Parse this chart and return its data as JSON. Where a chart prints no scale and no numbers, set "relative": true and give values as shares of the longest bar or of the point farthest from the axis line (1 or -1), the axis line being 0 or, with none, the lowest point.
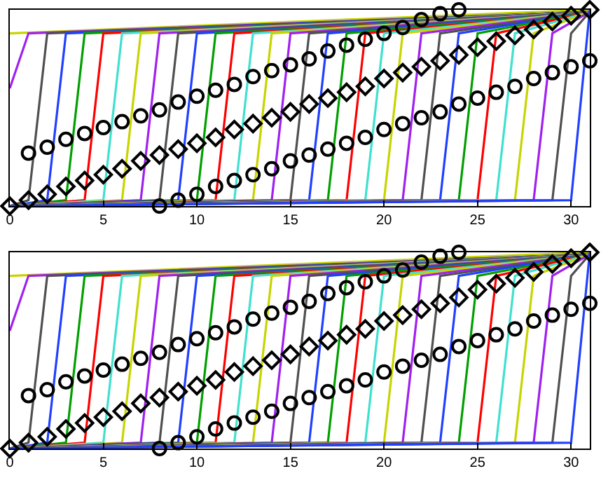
{
  "chart_data": [
    {
      "type": "line",
      "relative": true,
      "xlim": [
        0,
        31
      ],
      "xticks": [
        0,
        5,
        10,
        15,
        20,
        25,
        30
      ],
      "tick_labels": "x",
      "series": [
        {
          "color": "#c8d400",
          "x": [
            0,
            31
          ],
          "values": [
            0.88,
            1.0
          ]
        },
        {
          "color": "#a020f0",
          "x": [
            0,
            1,
            31
          ],
          "values": [
            0.6,
            0.88,
            0.99
          ]
        },
        {
          "color": "#505050",
          "x": [
            0,
            1,
            2,
            31
          ],
          "values": [
            0,
            0.03,
            0.88,
            0.99
          ]
        },
        {
          "color": "#2040ff",
          "x": [
            0,
            2,
            3,
            31
          ],
          "values": [
            0,
            0.03,
            0.88,
            0.99
          ]
        },
        {
          "color": "#00a000",
          "x": [
            0,
            3,
            4,
            31
          ],
          "values": [
            0,
            0.03,
            0.88,
            0.99
          ]
        },
        {
          "color": "#ff0000",
          "x": [
            0,
            4,
            5,
            31
          ],
          "values": [
            0,
            0.03,
            0.88,
            0.99
          ]
        },
        {
          "color": "#40e0d0",
          "x": [
            0,
            5,
            6,
            31
          ],
          "values": [
            0,
            0.03,
            0.88,
            0.99
          ]
        },
        {
          "color": "#c8d400",
          "x": [
            0,
            6,
            7,
            31
          ],
          "values": [
            0,
            0.03,
            0.88,
            0.99
          ]
        },
        {
          "color": "#a020f0",
          "x": [
            0,
            7,
            8,
            31
          ],
          "values": [
            0,
            0.03,
            0.88,
            0.99
          ]
        },
        {
          "color": "#505050",
          "x": [
            0,
            8,
            9,
            31
          ],
          "values": [
            0,
            0.03,
            0.88,
            0.99
          ]
        },
        {
          "color": "#2040ff",
          "x": [
            0,
            9,
            10,
            31
          ],
          "values": [
            0,
            0.03,
            0.88,
            0.99
          ]
        },
        {
          "color": "#00a000",
          "x": [
            0,
            10,
            11,
            31
          ],
          "values": [
            0,
            0.03,
            0.88,
            0.99
          ]
        },
        {
          "color": "#ff0000",
          "x": [
            0,
            11,
            12,
            31
          ],
          "values": [
            0,
            0.03,
            0.88,
            0.99
          ]
        },
        {
          "color": "#40e0d0",
          "x": [
            0,
            12,
            13,
            31
          ],
          "values": [
            0,
            0.03,
            0.88,
            0.99
          ]
        },
        {
          "color": "#c8d400",
          "x": [
            0,
            13,
            14,
            31
          ],
          "values": [
            0,
            0.03,
            0.88,
            0.99
          ]
        },
        {
          "color": "#a020f0",
          "x": [
            0,
            14,
            15,
            31
          ],
          "values": [
            0,
            0.03,
            0.88,
            0.99
          ]
        },
        {
          "color": "#505050",
          "x": [
            0,
            15,
            16,
            31
          ],
          "values": [
            0,
            0.03,
            0.88,
            0.99
          ]
        },
        {
          "color": "#2040ff",
          "x": [
            0,
            16,
            17,
            31
          ],
          "values": [
            0,
            0.03,
            0.88,
            0.99
          ]
        },
        {
          "color": "#00a000",
          "x": [
            0,
            17,
            18,
            31
          ],
          "values": [
            0,
            0.03,
            0.88,
            0.99
          ]
        },
        {
          "color": "#ff0000",
          "x": [
            0,
            18,
            19,
            31
          ],
          "values": [
            0,
            0.03,
            0.88,
            0.99
          ]
        },
        {
          "color": "#40e0d0",
          "x": [
            0,
            19,
            20,
            31
          ],
          "values": [
            0,
            0.03,
            0.88,
            0.99
          ]
        },
        {
          "color": "#c8d400",
          "x": [
            0,
            20,
            21,
            31
          ],
          "values": [
            0,
            0.03,
            0.88,
            0.99
          ]
        },
        {
          "color": "#a020f0",
          "x": [
            0,
            21,
            22,
            31
          ],
          "values": [
            0,
            0.03,
            0.88,
            0.99
          ]
        },
        {
          "color": "#505050",
          "x": [
            0,
            22,
            23,
            31
          ],
          "values": [
            0,
            0.03,
            0.88,
            0.99
          ]
        },
        {
          "color": "#2040ff",
          "x": [
            0,
            23,
            24,
            31
          ],
          "values": [
            0,
            0.03,
            0.88,
            0.99
          ]
        },
        {
          "color": "#00a000",
          "x": [
            0,
            24,
            25,
            31
          ],
          "values": [
            0,
            0.03,
            0.88,
            0.99
          ]
        },
        {
          "color": "#ff0000",
          "x": [
            0,
            25,
            26,
            31
          ],
          "values": [
            0,
            0.03,
            0.88,
            0.99
          ]
        },
        {
          "color": "#40e0d0",
          "x": [
            0,
            26,
            27,
            31
          ],
          "values": [
            0,
            0.03,
            0.88,
            0.99
          ]
        },
        {
          "color": "#c8d400",
          "x": [
            0,
            27,
            28,
            31
          ],
          "values": [
            0,
            0.03,
            0.88,
            0.99
          ]
        },
        {
          "color": "#a020f0",
          "x": [
            0,
            28,
            29,
            31
          ],
          "values": [
            0,
            0.03,
            0.88,
            0.99
          ]
        },
        {
          "color": "#505050",
          "x": [
            0,
            29,
            30,
            31
          ],
          "values": [
            0,
            0.03,
            0.88,
            0.99
          ]
        },
        {
          "color": "#2040ff",
          "x": [
            0,
            30,
            31
          ],
          "values": [
            0,
            0.03,
            1.0
          ]
        },
        {
          "type": "scatter",
          "marker": "circle",
          "color": "#000000",
          "x": [
            1,
            2,
            3,
            4,
            5,
            6,
            7,
            8,
            9,
            10,
            11,
            12,
            13,
            14,
            15,
            16,
            17,
            18,
            19,
            20,
            21,
            22,
            23,
            24
          ],
          "values": [
            0.27,
            0.3,
            0.34,
            0.37,
            0.4,
            0.43,
            0.46,
            0.49,
            0.53,
            0.56,
            0.59,
            0.62,
            0.66,
            0.69,
            0.72,
            0.75,
            0.79,
            0.82,
            0.85,
            0.88,
            0.91,
            0.95,
            0.98,
            1.0
          ]
        },
        {
          "type": "scatter",
          "marker": "diamond",
          "color": "#000000",
          "x": [
            0,
            1,
            2,
            3,
            4,
            5,
            6,
            7,
            8,
            9,
            10,
            11,
            12,
            13,
            14,
            15,
            16,
            17,
            18,
            19,
            20,
            21,
            22,
            23,
            24,
            25,
            26,
            27,
            28,
            29,
            30,
            31
          ],
          "values": [
            0,
            0.03,
            0.06,
            0.1,
            0.13,
            0.16,
            0.19,
            0.23,
            0.26,
            0.29,
            0.32,
            0.35,
            0.39,
            0.42,
            0.45,
            0.48,
            0.52,
            0.55,
            0.58,
            0.61,
            0.65,
            0.68,
            0.71,
            0.74,
            0.77,
            0.81,
            0.84,
            0.87,
            0.9,
            0.94,
            0.97,
            1.0
          ]
        },
        {
          "type": "scatter",
          "marker": "circle",
          "color": "#000000",
          "x": [
            8,
            9,
            10,
            11,
            12,
            13,
            14,
            15,
            16,
            17,
            18,
            19,
            20,
            21,
            22,
            23,
            24,
            25,
            26,
            27,
            28,
            29,
            30,
            31
          ],
          "values": [
            0,
            0.03,
            0.06,
            0.1,
            0.13,
            0.16,
            0.19,
            0.23,
            0.26,
            0.29,
            0.32,
            0.35,
            0.39,
            0.42,
            0.45,
            0.48,
            0.52,
            0.55,
            0.58,
            0.61,
            0.65,
            0.68,
            0.71,
            0.74
          ]
        }
      ]
    },
    {
      "type": "line",
      "relative": true,
      "xlim": [
        0,
        31
      ],
      "xticks": [
        0,
        5,
        10,
        15,
        20,
        25,
        30
      ],
      "tick_labels": "x",
      "series": [
        {
          "color": "#c8d400",
          "x": [
            0,
            31
          ],
          "values": [
            0.88,
            1.0
          ]
        },
        {
          "color": "#a020f0",
          "x": [
            0,
            1,
            31
          ],
          "values": [
            0.6,
            0.88,
            0.99
          ]
        },
        {
          "color": "#505050",
          "x": [
            0,
            1,
            2,
            31
          ],
          "values": [
            0,
            0.03,
            0.88,
            0.99
          ]
        },
        {
          "color": "#2040ff",
          "x": [
            0,
            2,
            3,
            31
          ],
          "values": [
            0,
            0.03,
            0.88,
            0.99
          ]
        },
        {
          "color": "#00a000",
          "x": [
            0,
            3,
            4,
            31
          ],
          "values": [
            0,
            0.03,
            0.88,
            0.99
          ]
        },
        {
          "color": "#ff0000",
          "x": [
            0,
            4,
            5,
            31
          ],
          "values": [
            0,
            0.03,
            0.88,
            0.99
          ]
        },
        {
          "color": "#40e0d0",
          "x": [
            0,
            5,
            6,
            31
          ],
          "values": [
            0,
            0.03,
            0.88,
            0.99
          ]
        },
        {
          "color": "#c8d400",
          "x": [
            0,
            6,
            7,
            31
          ],
          "values": [
            0,
            0.03,
            0.88,
            0.99
          ]
        },
        {
          "color": "#a020f0",
          "x": [
            0,
            7,
            8,
            31
          ],
          "values": [
            0,
            0.03,
            0.88,
            0.99
          ]
        },
        {
          "color": "#505050",
          "x": [
            0,
            8,
            9,
            31
          ],
          "values": [
            0,
            0.03,
            0.88,
            0.99
          ]
        },
        {
          "color": "#2040ff",
          "x": [
            0,
            9,
            10,
            31
          ],
          "values": [
            0,
            0.03,
            0.88,
            0.99
          ]
        },
        {
          "color": "#00a000",
          "x": [
            0,
            10,
            11,
            31
          ],
          "values": [
            0,
            0.03,
            0.88,
            0.99
          ]
        },
        {
          "color": "#ff0000",
          "x": [
            0,
            11,
            12,
            31
          ],
          "values": [
            0,
            0.03,
            0.88,
            0.99
          ]
        },
        {
          "color": "#40e0d0",
          "x": [
            0,
            12,
            13,
            31
          ],
          "values": [
            0,
            0.03,
            0.88,
            0.99
          ]
        },
        {
          "color": "#c8d400",
          "x": [
            0,
            13,
            14,
            31
          ],
          "values": [
            0,
            0.03,
            0.88,
            0.99
          ]
        },
        {
          "color": "#a020f0",
          "x": [
            0,
            14,
            15,
            31
          ],
          "values": [
            0,
            0.03,
            0.88,
            0.99
          ]
        },
        {
          "color": "#505050",
          "x": [
            0,
            15,
            16,
            31
          ],
          "values": [
            0,
            0.03,
            0.88,
            0.99
          ]
        },
        {
          "color": "#2040ff",
          "x": [
            0,
            16,
            17,
            31
          ],
          "values": [
            0,
            0.03,
            0.88,
            0.99
          ]
        },
        {
          "color": "#00a000",
          "x": [
            0,
            17,
            18,
            31
          ],
          "values": [
            0,
            0.03,
            0.88,
            0.99
          ]
        },
        {
          "color": "#ff0000",
          "x": [
            0,
            18,
            19,
            31
          ],
          "values": [
            0,
            0.03,
            0.88,
            0.99
          ]
        },
        {
          "color": "#40e0d0",
          "x": [
            0,
            19,
            20,
            31
          ],
          "values": [
            0,
            0.03,
            0.88,
            0.99
          ]
        },
        {
          "color": "#c8d400",
          "x": [
            0,
            20,
            21,
            31
          ],
          "values": [
            0,
            0.03,
            0.88,
            0.99
          ]
        },
        {
          "color": "#a020f0",
          "x": [
            0,
            21,
            22,
            31
          ],
          "values": [
            0,
            0.03,
            0.88,
            0.99
          ]
        },
        {
          "color": "#505050",
          "x": [
            0,
            22,
            23,
            31
          ],
          "values": [
            0,
            0.03,
            0.88,
            0.99
          ]
        },
        {
          "color": "#2040ff",
          "x": [
            0,
            23,
            24,
            31
          ],
          "values": [
            0,
            0.03,
            0.88,
            0.99
          ]
        },
        {
          "color": "#00a000",
          "x": [
            0,
            24,
            25,
            31
          ],
          "values": [
            0,
            0.03,
            0.88,
            0.99
          ]
        },
        {
          "color": "#ff0000",
          "x": [
            0,
            25,
            26,
            31
          ],
          "values": [
            0,
            0.03,
            0.88,
            0.99
          ]
        },
        {
          "color": "#40e0d0",
          "x": [
            0,
            26,
            27,
            31
          ],
          "values": [
            0,
            0.03,
            0.88,
            0.99
          ]
        },
        {
          "color": "#c8d400",
          "x": [
            0,
            27,
            28,
            31
          ],
          "values": [
            0,
            0.03,
            0.88,
            0.99
          ]
        },
        {
          "color": "#a020f0",
          "x": [
            0,
            28,
            29,
            31
          ],
          "values": [
            0,
            0.03,
            0.88,
            0.99
          ]
        },
        {
          "color": "#505050",
          "x": [
            0,
            29,
            30,
            31
          ],
          "values": [
            0,
            0.03,
            0.88,
            0.99
          ]
        },
        {
          "color": "#2040ff",
          "x": [
            0,
            30,
            31
          ],
          "values": [
            0,
            0.03,
            1.0
          ]
        },
        {
          "type": "scatter",
          "marker": "circle",
          "color": "#000000",
          "x": [
            1,
            2,
            3,
            4,
            5,
            6,
            7,
            8,
            9,
            10,
            11,
            12,
            13,
            14,
            15,
            16,
            17,
            18,
            19,
            20,
            21,
            22,
            23,
            24
          ],
          "values": [
            0.27,
            0.3,
            0.34,
            0.37,
            0.4,
            0.43,
            0.46,
            0.49,
            0.53,
            0.56,
            0.59,
            0.62,
            0.66,
            0.69,
            0.72,
            0.75,
            0.79,
            0.82,
            0.85,
            0.88,
            0.91,
            0.95,
            0.98,
            1.0
          ]
        },
        {
          "type": "scatter",
          "marker": "diamond",
          "color": "#000000",
          "x": [
            0,
            1,
            2,
            3,
            4,
            5,
            6,
            7,
            8,
            9,
            10,
            11,
            12,
            13,
            14,
            15,
            16,
            17,
            18,
            19,
            20,
            21,
            22,
            23,
            24,
            25,
            26,
            27,
            28,
            29,
            30,
            31
          ],
          "values": [
            0,
            0.03,
            0.06,
            0.1,
            0.13,
            0.16,
            0.19,
            0.23,
            0.26,
            0.29,
            0.32,
            0.35,
            0.39,
            0.42,
            0.45,
            0.48,
            0.52,
            0.55,
            0.58,
            0.61,
            0.65,
            0.68,
            0.71,
            0.74,
            0.77,
            0.81,
            0.84,
            0.87,
            0.9,
            0.94,
            0.97,
            1.0
          ]
        },
        {
          "type": "scatter",
          "marker": "circle",
          "color": "#000000",
          "x": [
            8,
            9,
            10,
            11,
            12,
            13,
            14,
            15,
            16,
            17,
            18,
            19,
            20,
            21,
            22,
            23,
            24,
            25,
            26,
            27,
            28,
            29,
            30,
            31
          ],
          "values": [
            0,
            0.03,
            0.06,
            0.1,
            0.13,
            0.16,
            0.19,
            0.23,
            0.26,
            0.29,
            0.32,
            0.35,
            0.39,
            0.42,
            0.45,
            0.48,
            0.52,
            0.55,
            0.58,
            0.61,
            0.65,
            0.68,
            0.71,
            0.74
          ]
        }
      ]
    }
  ]
}
